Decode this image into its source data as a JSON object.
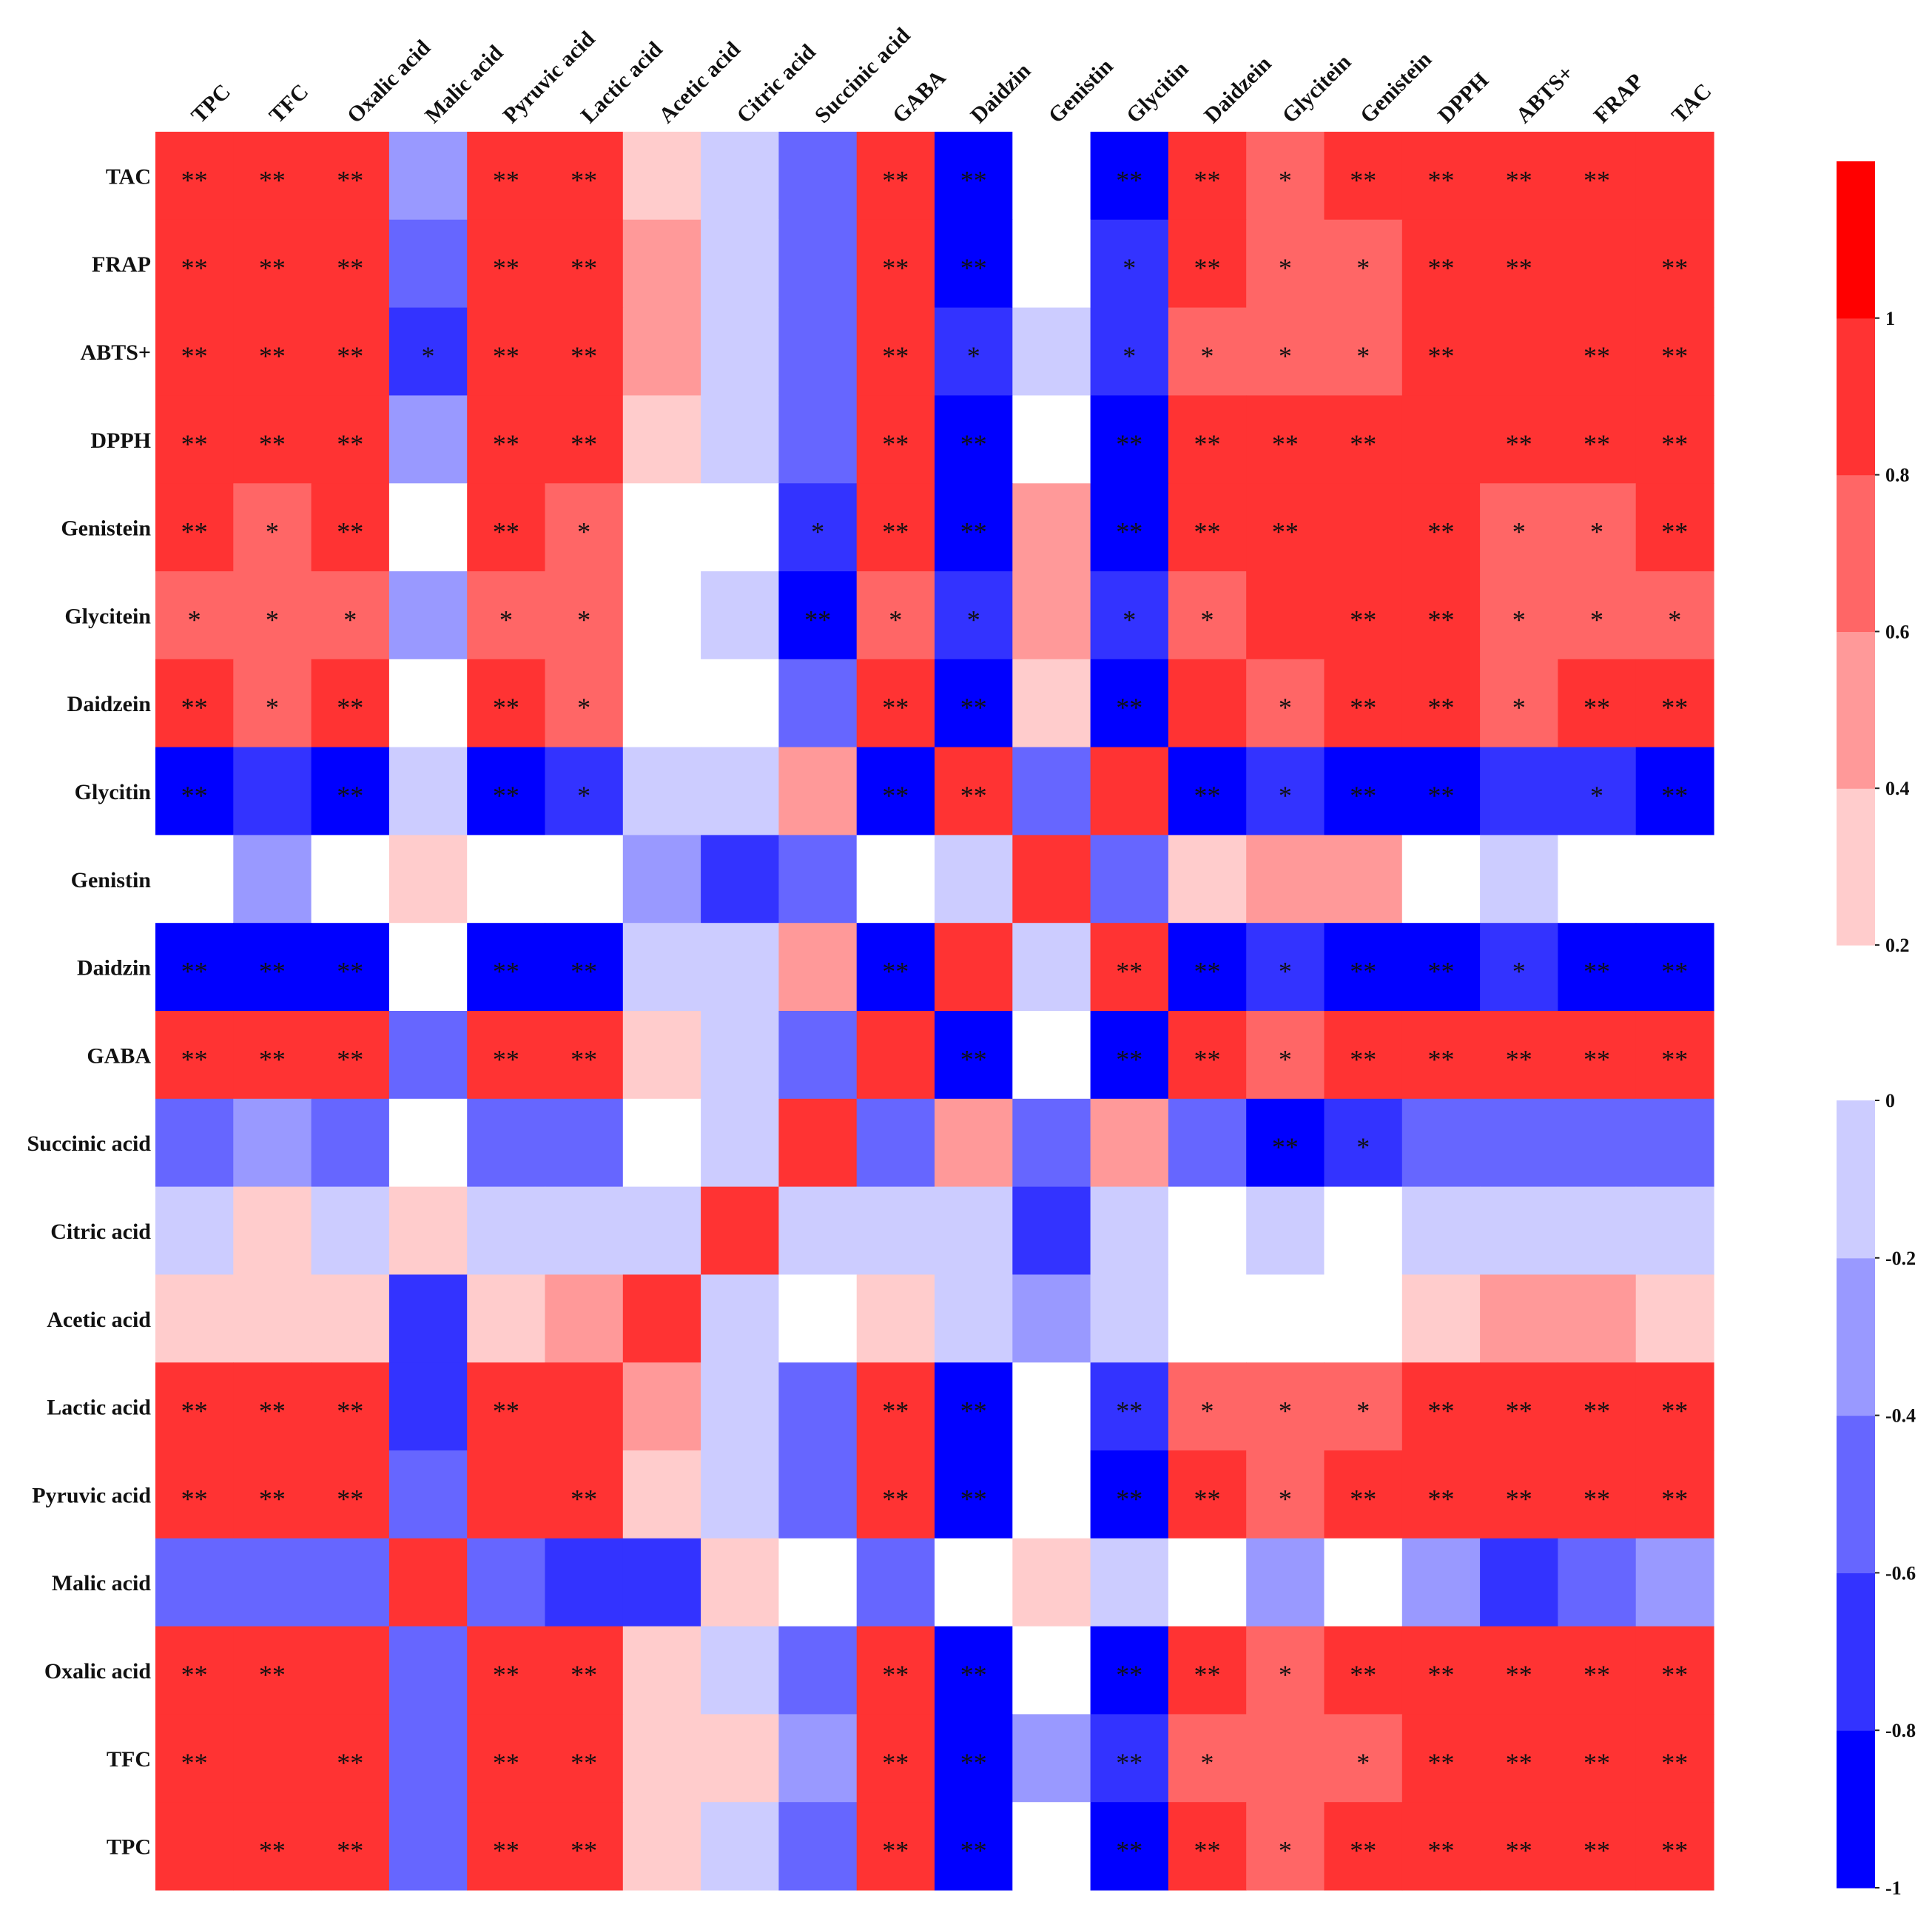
{
  "chart_data": {
    "type": "heatmap",
    "title": "",
    "columns": [
      "TPC",
      "TFC",
      "Oxalic acid",
      "Malic acid",
      "Pyruvic acid",
      "Lactic acid",
      "Acetic acid",
      "Citric acid",
      "Succinic acid",
      "GABA",
      "Daidzin",
      "Genistin",
      "Glycitin",
      "Daidzein",
      "Glycitein",
      "Genistein",
      "DPPH",
      "ABTS+",
      "FRAP",
      "TAC"
    ],
    "rows": [
      "TAC",
      "FRAP",
      "ABTS+",
      "DPPH",
      "Genistein",
      "Glycitein",
      "Daidzein",
      "Glycitin",
      "Genistin",
      "Daidzin",
      "GABA",
      "Succinic acid",
      "Citric acid",
      "Acetic acid",
      "Lactic acid",
      "Pyruvic acid",
      "Malic acid",
      "Oxalic acid",
      "TFC",
      "TPC"
    ],
    "levels": [
      {
        "min": -1.0,
        "max": -0.8,
        "color": "#0000ff"
      },
      {
        "min": -0.8,
        "max": -0.6,
        "color": "#3333ff"
      },
      {
        "min": -0.6,
        "max": -0.4,
        "color": "#6666ff"
      },
      {
        "min": -0.4,
        "max": -0.2,
        "color": "#9999ff"
      },
      {
        "min": -0.2,
        "max": 0.0,
        "color": "#ccccff"
      },
      {
        "min": 0.0,
        "max": 0.2,
        "color": "#ffffff"
      },
      {
        "min": 0.2,
        "max": 0.4,
        "color": "#ffcccc"
      },
      {
        "min": 0.4,
        "max": 0.6,
        "color": "#ff9999"
      },
      {
        "min": 0.6,
        "max": 0.8,
        "color": "#ff6666"
      },
      {
        "min": 0.8,
        "max": 1.0,
        "color": "#ff3333"
      },
      {
        "min": 1.0,
        "max": 1.2,
        "color": "#ff0000"
      }
    ],
    "values": [
      [
        0.9,
        0.9,
        0.9,
        -0.3,
        0.9,
        0.9,
        0.3,
        -0.1,
        -0.5,
        0.9,
        -0.9,
        0.1,
        -0.9,
        0.9,
        0.7,
        0.9,
        0.9,
        0.9,
        0.9,
        0.9
      ],
      [
        0.9,
        0.9,
        0.9,
        -0.5,
        0.9,
        0.9,
        0.5,
        -0.1,
        -0.5,
        0.9,
        -0.9,
        0.1,
        -0.7,
        0.9,
        0.7,
        0.7,
        0.9,
        0.9,
        0.9,
        0.9
      ],
      [
        0.9,
        0.9,
        0.9,
        -0.7,
        0.9,
        0.9,
        0.5,
        -0.1,
        -0.5,
        0.9,
        -0.7,
        -0.1,
        -0.7,
        0.7,
        0.7,
        0.7,
        0.9,
        0.9,
        0.9,
        0.9
      ],
      [
        0.9,
        0.9,
        0.9,
        -0.3,
        0.9,
        0.9,
        0.3,
        -0.1,
        -0.5,
        0.9,
        -0.9,
        0.1,
        -0.9,
        0.9,
        0.9,
        0.9,
        0.9,
        0.9,
        0.9,
        0.9
      ],
      [
        0.9,
        0.7,
        0.9,
        0.1,
        0.9,
        0.7,
        0.1,
        0.1,
        -0.7,
        0.9,
        -0.9,
        0.5,
        -0.9,
        0.9,
        0.9,
        0.9,
        0.9,
        0.7,
        0.7,
        0.9
      ],
      [
        0.7,
        0.7,
        0.7,
        -0.3,
        0.7,
        0.7,
        0.1,
        -0.1,
        -0.9,
        0.7,
        -0.7,
        0.5,
        -0.7,
        0.7,
        0.9,
        0.9,
        0.9,
        0.7,
        0.7,
        0.7
      ],
      [
        0.9,
        0.7,
        0.9,
        0.1,
        0.9,
        0.7,
        0.1,
        0.1,
        -0.5,
        0.9,
        -0.9,
        0.3,
        -0.9,
        0.9,
        0.7,
        0.9,
        0.9,
        0.7,
        0.9,
        0.9
      ],
      [
        -0.9,
        -0.7,
        -0.9,
        -0.1,
        -0.9,
        -0.7,
        -0.1,
        -0.1,
        0.5,
        -0.9,
        0.9,
        -0.5,
        0.9,
        -0.9,
        -0.7,
        -0.9,
        -0.9,
        -0.7,
        -0.7,
        -0.9
      ],
      [
        0.1,
        -0.3,
        0.1,
        0.3,
        0.1,
        0.1,
        -0.3,
        -0.7,
        -0.5,
        0.1,
        -0.1,
        0.9,
        -0.5,
        0.3,
        0.5,
        0.5,
        0.1,
        -0.1,
        0.1,
        0.1
      ],
      [
        -0.9,
        -0.9,
        -0.9,
        0.1,
        -0.9,
        -0.9,
        -0.1,
        -0.1,
        0.5,
        -0.9,
        0.9,
        -0.1,
        0.9,
        -0.9,
        -0.7,
        -0.9,
        -0.9,
        -0.7,
        -0.9,
        -0.9
      ],
      [
        0.9,
        0.9,
        0.9,
        -0.5,
        0.9,
        0.9,
        0.3,
        -0.1,
        -0.5,
        0.9,
        -0.9,
        0.1,
        -0.9,
        0.9,
        0.7,
        0.9,
        0.9,
        0.9,
        0.9,
        0.9
      ],
      [
        -0.5,
        -0.3,
        -0.5,
        0.1,
        -0.5,
        -0.5,
        0.1,
        -0.1,
        0.9,
        -0.5,
        0.5,
        -0.5,
        0.5,
        -0.5,
        -0.9,
        -0.7,
        -0.5,
        -0.5,
        -0.5,
        -0.5
      ],
      [
        -0.1,
        0.3,
        -0.1,
        0.3,
        -0.1,
        -0.1,
        -0.1,
        0.9,
        -0.1,
        -0.1,
        -0.1,
        -0.7,
        -0.1,
        0.1,
        -0.1,
        0.1,
        -0.1,
        -0.1,
        -0.1,
        -0.1
      ],
      [
        0.3,
        0.3,
        0.3,
        -0.7,
        0.3,
        0.5,
        0.9,
        -0.1,
        0.1,
        0.3,
        -0.1,
        -0.3,
        -0.1,
        0.1,
        0.1,
        0.1,
        0.3,
        0.5,
        0.5,
        0.3
      ],
      [
        0.9,
        0.9,
        0.9,
        -0.7,
        0.9,
        0.9,
        0.5,
        -0.1,
        -0.5,
        0.9,
        -0.9,
        0.1,
        -0.7,
        0.7,
        0.7,
        0.7,
        0.9,
        0.9,
        0.9,
        0.9
      ],
      [
        0.9,
        0.9,
        0.9,
        -0.5,
        0.9,
        0.9,
        0.3,
        -0.1,
        -0.5,
        0.9,
        -0.9,
        0.1,
        -0.9,
        0.9,
        0.7,
        0.9,
        0.9,
        0.9,
        0.9,
        0.9
      ],
      [
        -0.5,
        -0.5,
        -0.5,
        0.9,
        -0.5,
        -0.7,
        -0.7,
        0.3,
        0.1,
        -0.5,
        0.1,
        0.3,
        -0.1,
        0.1,
        -0.3,
        0.1,
        -0.3,
        -0.7,
        -0.5,
        -0.3
      ],
      [
        0.9,
        0.9,
        0.9,
        -0.5,
        0.9,
        0.9,
        0.3,
        -0.1,
        -0.5,
        0.9,
        -0.9,
        0.1,
        -0.9,
        0.9,
        0.7,
        0.9,
        0.9,
        0.9,
        0.9,
        0.9
      ],
      [
        0.9,
        0.9,
        0.9,
        -0.5,
        0.9,
        0.9,
        0.3,
        0.3,
        -0.3,
        0.9,
        -0.9,
        -0.3,
        -0.7,
        0.7,
        0.7,
        0.7,
        0.9,
        0.9,
        0.9,
        0.9
      ],
      [
        0.9,
        0.9,
        0.9,
        -0.5,
        0.9,
        0.9,
        0.3,
        -0.1,
        -0.5,
        0.9,
        -0.9,
        0.1,
        -0.9,
        0.9,
        0.7,
        0.9,
        0.9,
        0.9,
        0.9,
        0.9
      ]
    ],
    "significance": [
      [
        "**",
        "**",
        "**",
        "",
        "**",
        "**",
        "",
        "",
        "",
        "**",
        "**",
        "",
        "**",
        "**",
        "*",
        "**",
        "**",
        "**",
        "**",
        ""
      ],
      [
        "**",
        "**",
        "**",
        "",
        "**",
        "**",
        "",
        "",
        "",
        "**",
        "**",
        "",
        "*",
        "**",
        "*",
        "*",
        "**",
        "**",
        "",
        "**"
      ],
      [
        "**",
        "**",
        "**",
        "*",
        "**",
        "**",
        "",
        "",
        "",
        "**",
        "*",
        "",
        "*",
        "*",
        "*",
        "*",
        "**",
        "",
        "**",
        "**"
      ],
      [
        "**",
        "**",
        "**",
        "",
        "**",
        "**",
        "",
        "",
        "",
        "**",
        "**",
        "",
        "**",
        "**",
        "**",
        "**",
        "",
        "**",
        "**",
        "**"
      ],
      [
        "**",
        "*",
        "**",
        "",
        "**",
        "*",
        "",
        "",
        "*",
        "**",
        "**",
        "",
        "**",
        "**",
        "**",
        "",
        "**",
        "*",
        "*",
        "**"
      ],
      [
        "*",
        "*",
        "*",
        "",
        "*",
        "*",
        "",
        "",
        "**",
        "*",
        "*",
        "",
        "*",
        "*",
        "",
        "**",
        "**",
        "*",
        "*",
        "*"
      ],
      [
        "**",
        "*",
        "**",
        "",
        "**",
        "*",
        "",
        "",
        "",
        "**",
        "**",
        "",
        "**",
        "",
        "*",
        "**",
        "**",
        "*",
        "**",
        "**"
      ],
      [
        "**",
        "",
        "**",
        "",
        "**",
        "*",
        "",
        "",
        "",
        "**",
        "**",
        "",
        "",
        "**",
        "*",
        "**",
        "**",
        "",
        "*",
        "**"
      ],
      [
        "",
        "",
        "",
        "",
        "",
        "",
        "",
        "",
        "",
        "",
        "",
        "",
        "",
        "",
        "",
        "",
        "",
        "",
        "",
        ""
      ],
      [
        "**",
        "**",
        "**",
        "",
        "**",
        "**",
        "",
        "",
        "",
        "**",
        "",
        "",
        "**",
        "**",
        "*",
        "**",
        "**",
        "*",
        "**",
        "**"
      ],
      [
        "**",
        "**",
        "**",
        "",
        "**",
        "**",
        "",
        "",
        "",
        "",
        "**",
        "",
        "**",
        "**",
        "*",
        "**",
        "**",
        "**",
        "**",
        "**"
      ],
      [
        "",
        "",
        "",
        "",
        "",
        "",
        "",
        "",
        "",
        "",
        "",
        "",
        "",
        "",
        "**",
        "*",
        "",
        "",
        "",
        ""
      ],
      [
        "",
        "",
        "",
        "",
        "",
        "",
        "",
        "",
        "",
        "",
        "",
        "",
        "",
        "",
        "",
        "",
        "",
        "",
        "",
        ""
      ],
      [
        "",
        "",
        "",
        "",
        "",
        "",
        "",
        "",
        "",
        "",
        "",
        "",
        "",
        "",
        "",
        "",
        "",
        "",
        "",
        ""
      ],
      [
        "**",
        "**",
        "**",
        "",
        "**",
        "",
        "",
        "",
        "",
        "**",
        "**",
        "",
        "**",
        "*",
        "*",
        "*",
        "**",
        "**",
        "**",
        "**"
      ],
      [
        "**",
        "**",
        "**",
        "",
        "",
        "**",
        "",
        "",
        "",
        "**",
        "**",
        "",
        "**",
        "**",
        "*",
        "**",
        "**",
        "**",
        "**",
        "**"
      ],
      [
        "",
        "",
        "",
        "",
        "",
        "",
        "",
        "",
        "",
        "",
        "",
        "",
        "",
        "",
        "",
        "",
        "",
        "",
        "",
        ""
      ],
      [
        "**",
        "**",
        "",
        "",
        "**",
        "**",
        "",
        "",
        "",
        "**",
        "**",
        "",
        "**",
        "**",
        "*",
        "**",
        "**",
        "**",
        "**",
        "**"
      ],
      [
        "**",
        "",
        "**",
        "",
        "**",
        "**",
        "",
        "",
        "",
        "**",
        "**",
        "",
        "**",
        "*",
        "",
        "*",
        "**",
        "**",
        "**",
        "**"
      ],
      [
        "",
        "**",
        "**",
        "",
        "**",
        "**",
        "",
        "",
        "",
        "**",
        "**",
        "",
        "**",
        "**",
        "*",
        "**",
        "**",
        "**",
        "**",
        "**"
      ]
    ],
    "colorbar": {
      "positive_ticks": [
        "1",
        "0.8",
        "0.6",
        "0.4",
        "0.2"
      ],
      "negative_ticks": [
        "0",
        "-0.2",
        "-0.4",
        "-0.6",
        "-0.8",
        "-1"
      ]
    }
  }
}
